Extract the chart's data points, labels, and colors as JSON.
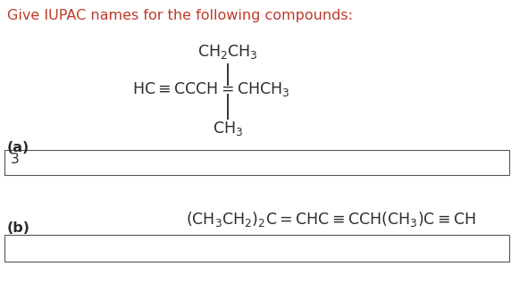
{
  "title": "Give IUPAC names for the following compounds:",
  "title_color": "#c0392b",
  "title_fontsize": 11.5,
  "bg_color": "#ffffff",
  "label_a": "(a)",
  "label_b": "(b)",
  "answer_a": "3",
  "text_color": "#2b2b2b",
  "font_family": "DejaVu Sans",
  "box_color": "#555555",
  "line_color": "#333333",
  "chem_fontsize": 12.5,
  "label_fontsize": 11.5,
  "answer_fontsize": 11
}
